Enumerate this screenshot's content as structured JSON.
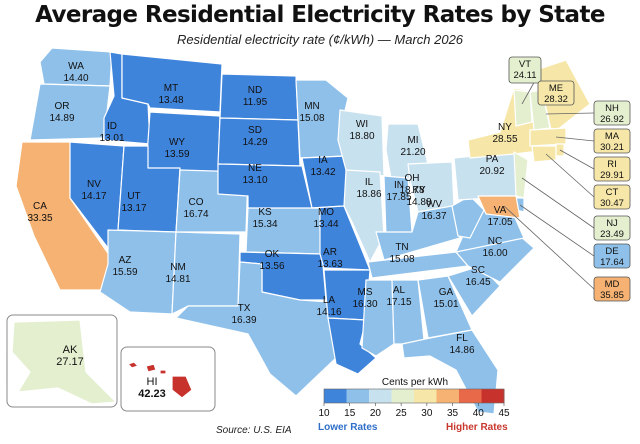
{
  "header": {
    "title": "Average Residential Electricity Rates by State",
    "subtitle": "Residential electricity rate (¢/kWh) — March 2026"
  },
  "source": "Source: U.S. EIA",
  "legend": {
    "title": "Cents per kWh",
    "ticks": [
      "10",
      "15",
      "20",
      "25",
      "30",
      "35",
      "40",
      "45"
    ],
    "low_label": "Lower Rates",
    "high_label": "Higher Rates",
    "range": [
      10,
      45
    ]
  },
  "colors": {
    "scale": [
      "#3f84db",
      "#8ec0ea",
      "#c8e1ef",
      "#e4efcf",
      "#f6e7a8",
      "#f5b272",
      "#e8694a",
      "#c7322c"
    ],
    "border": "#ffffff"
  },
  "states": [
    {
      "code": "WA",
      "name": "Washington",
      "value": "14.40"
    },
    {
      "code": "OR",
      "name": "Oregon",
      "value": "14.89"
    },
    {
      "code": "CA",
      "name": "California",
      "value": "33.35"
    },
    {
      "code": "ID",
      "name": "Idaho",
      "value": "13.01"
    },
    {
      "code": "NV",
      "name": "Nevada",
      "value": "14.17"
    },
    {
      "code": "MT",
      "name": "Montana",
      "value": "13.48"
    },
    {
      "code": "WY",
      "name": "Wyoming",
      "value": "13.59"
    },
    {
      "code": "UT",
      "name": "Utah",
      "value": "13.17"
    },
    {
      "code": "AZ",
      "name": "Arizona",
      "value": "15.59"
    },
    {
      "code": "CO",
      "name": "Colorado",
      "value": "16.74"
    },
    {
      "code": "NM",
      "name": "New Mexico",
      "value": "14.81"
    },
    {
      "code": "ND",
      "name": "North Dakota",
      "value": "11.95"
    },
    {
      "code": "SD",
      "name": "South Dakota",
      "value": "14.29"
    },
    {
      "code": "NE",
      "name": "Nebraska",
      "value": "13.10"
    },
    {
      "code": "KS",
      "name": "Kansas",
      "value": "15.34"
    },
    {
      "code": "OK",
      "name": "Oklahoma",
      "value": "13.56"
    },
    {
      "code": "TX",
      "name": "Texas",
      "value": "16.39"
    },
    {
      "code": "MN",
      "name": "Minnesota",
      "value": "15.08"
    },
    {
      "code": "IA",
      "name": "Iowa",
      "value": "13.42"
    },
    {
      "code": "MO",
      "name": "Missouri",
      "value": "13.44"
    },
    {
      "code": "AR",
      "name": "Arkansas",
      "value": "13.63"
    },
    {
      "code": "LA",
      "name": "Louisiana",
      "value": "14.16"
    },
    {
      "code": "WI",
      "name": "Wisconsin",
      "value": "18.80"
    },
    {
      "code": "IL",
      "name": "Illinois",
      "value": "18.86"
    },
    {
      "code": "MI",
      "name": "Michigan",
      "value": "21.20"
    },
    {
      "code": "IN",
      "name": "Indiana",
      "value": "17.85"
    },
    {
      "code": "OH",
      "name": "Ohio",
      "value": "18.78"
    },
    {
      "code": "KY",
      "name": "Kentucky",
      "value": "14.88"
    },
    {
      "code": "TN",
      "name": "Tennessee",
      "value": "15.08"
    },
    {
      "code": "MS",
      "name": "Mississippi",
      "value": "16.30"
    },
    {
      "code": "AL",
      "name": "Alabama",
      "value": "17.15"
    },
    {
      "code": "GA",
      "name": "Georgia",
      "value": "15.01"
    },
    {
      "code": "FL",
      "name": "Florida",
      "value": "14.86"
    },
    {
      "code": "SC",
      "name": "South Carolina",
      "value": "16.45"
    },
    {
      "code": "NC",
      "name": "North Carolina",
      "value": "16.00"
    },
    {
      "code": "VA",
      "name": "Virginia",
      "value": "17.05"
    },
    {
      "code": "WV",
      "name": "West Virginia",
      "value": "16.37"
    },
    {
      "code": "PA",
      "name": "Pennsylvania",
      "value": "20.92"
    },
    {
      "code": "NY",
      "name": "New York",
      "value": "28.55"
    },
    {
      "code": "VT",
      "name": "Vermont",
      "value": "24.11"
    },
    {
      "code": "ME",
      "name": "Maine",
      "value": "28.32"
    },
    {
      "code": "NH",
      "name": "New Hampshire",
      "value": "26.92"
    },
    {
      "code": "MA",
      "name": "Massachusetts",
      "value": "30.21"
    },
    {
      "code": "RI",
      "name": "Rhode Island",
      "value": "29.91"
    },
    {
      "code": "CT",
      "name": "Connecticut",
      "value": "30.47"
    },
    {
      "code": "NJ",
      "name": "New Jersey",
      "value": "23.49"
    },
    {
      "code": "DE",
      "name": "Delaware",
      "value": "17.64"
    },
    {
      "code": "MD",
      "name": "Maryland",
      "value": "35.85"
    },
    {
      "code": "AK",
      "name": "Alaska",
      "value": "27.17"
    },
    {
      "code": "HI",
      "name": "Hawaii",
      "value": "42.23"
    }
  ]
}
